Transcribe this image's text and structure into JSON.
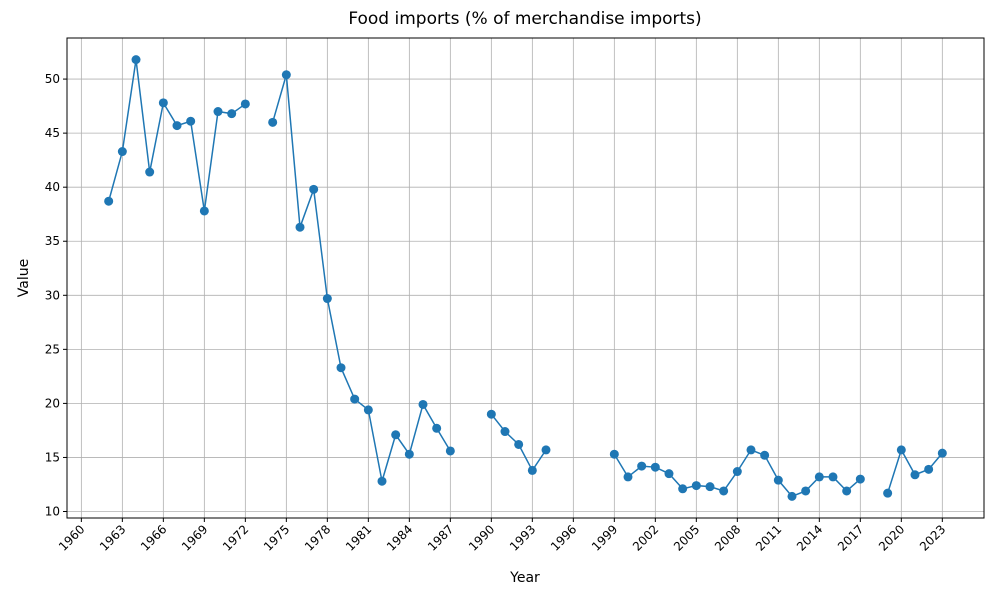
{
  "chart_data": {
    "type": "line",
    "title": "Food imports (% of merchandise imports)",
    "x_label": "Year",
    "y_label": "Value",
    "x": [
      1962,
      1963,
      1964,
      1965,
      1966,
      1967,
      1968,
      1969,
      1970,
      1971,
      1972,
      1973,
      1974,
      1975,
      1976,
      1977,
      1978,
      1979,
      1980,
      1981,
      1982,
      1983,
      1984,
      1985,
      1986,
      1987,
      1988,
      1989,
      1990,
      1991,
      1992,
      1993,
      1994,
      1995,
      1996,
      1997,
      1998,
      1999,
      2000,
      2001,
      2002,
      2003,
      2004,
      2005,
      2006,
      2007,
      2008,
      2009,
      2010,
      2011,
      2012,
      2013,
      2014,
      2015,
      2016,
      2017,
      2018,
      2019,
      2020,
      2021,
      2022,
      2023
    ],
    "values": [
      38.7,
      43.3,
      51.8,
      41.4,
      47.8,
      45.7,
      46.1,
      37.8,
      47.0,
      46.8,
      47.7,
      null,
      46.0,
      50.4,
      36.3,
      39.8,
      29.7,
      23.3,
      20.4,
      19.4,
      12.8,
      17.1,
      15.3,
      19.9,
      17.7,
      15.6,
      null,
      null,
      19.0,
      17.4,
      16.2,
      13.8,
      15.7,
      null,
      null,
      null,
      null,
      15.3,
      13.2,
      14.2,
      14.1,
      13.5,
      12.1,
      12.4,
      12.3,
      11.9,
      13.7,
      15.7,
      15.2,
      12.9,
      11.4,
      11.9,
      13.2,
      13.2,
      11.9,
      13.0,
      null,
      11.7,
      15.7,
      13.4,
      13.9,
      15.4
    ],
    "color": "#1f77b4",
    "xlim": [
      1958.95,
      2026.05
    ],
    "xticks": [
      1960,
      1963,
      1966,
      1969,
      1972,
      1975,
      1978,
      1981,
      1984,
      1987,
      1990,
      1993,
      1996,
      1999,
      2002,
      2005,
      2008,
      2011,
      2014,
      2017,
      2020,
      2023
    ],
    "ylim": [
      9.4,
      53.8
    ],
    "yticks": [
      10,
      15,
      20,
      25,
      30,
      35,
      40,
      45,
      50
    ],
    "grid": true
  }
}
